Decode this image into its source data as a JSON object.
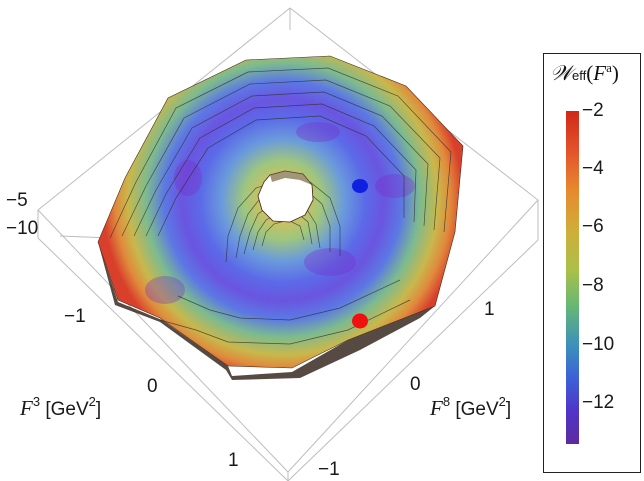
{
  "chart_data": {
    "type": "surface",
    "view": "3d-top-down",
    "xlabel": "F^3 [GeV^2]",
    "ylabel": "F^8 [GeV^2]",
    "x_ticks": [
      "−1",
      "0",
      "1"
    ],
    "y_ticks": [
      "1",
      "0",
      "−1"
    ],
    "z_ticks": [
      "−5",
      "−10"
    ],
    "colorbar": {
      "title": "W_eff(F^a)",
      "ticks": [
        "−2",
        "−4",
        "−6",
        "−8",
        "−10",
        "−12"
      ],
      "range": [
        -13.5,
        -2
      ],
      "colors": [
        "#d02818",
        "#e2532b",
        "#e68a2e",
        "#cfae3a",
        "#a9c04a",
        "#69b872",
        "#3d92b8",
        "#3d62d8",
        "#4f35c8",
        "#5e2aa0"
      ]
    },
    "markers": [
      {
        "color": "#1020e0",
        "label": ""
      },
      {
        "color": "#f01010",
        "label": ""
      }
    ],
    "surface": {
      "outer_value": -2,
      "minimum_value": -13,
      "inner_hole": true
    }
  }
}
